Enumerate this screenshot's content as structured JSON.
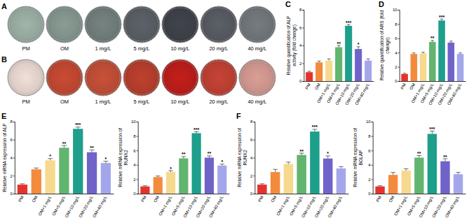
{
  "plate_panels": [
    {
      "panel": "A",
      "labels": [
        "PM",
        "OM",
        "1 mg/L",
        "5 mg/L",
        "10 mg/L",
        "20 mg/L",
        "40 mg/L"
      ]
    },
    {
      "panel": "B",
      "labels": [
        "PM",
        "OM",
        "1 mg/L",
        "5 mg/L",
        "10 mg/L",
        "20 mg/L",
        "40 mg/L"
      ]
    }
  ],
  "chart_data": [
    {
      "type": "bar",
      "panel": "C",
      "y_label": "Relative quantification of ALP activity (fold change)",
      "categories": [
        "PM",
        "OM",
        "OM+1 mg/L",
        "OM+5 mg/L",
        "OM+10 mg/L",
        "OM+20 mg/L",
        "OM+40 mg/L"
      ],
      "values": [
        1,
        2.1,
        2.3,
        3.8,
        6.2,
        3.6,
        2.3
      ],
      "errors": [
        0.1,
        0.15,
        0.2,
        0.2,
        0.15,
        0.25,
        0.2
      ],
      "annotations": [
        null,
        null,
        null,
        "**",
        "***",
        "*",
        null
      ],
      "colors": [
        "#e5322d",
        "#f28b3b",
        "#f6d98e",
        "#62b56f",
        "#1d9f8b",
        "#6f63c9",
        "#a4a6ec"
      ],
      "ylim": [
        0,
        8
      ],
      "yticks": [
        0,
        2,
        4,
        6,
        8
      ],
      "grid": false
    },
    {
      "type": "bar",
      "panel": "D",
      "y_label": "Relative quantification of ARS (fold change)",
      "categories": [
        "PM",
        "OM",
        "OM+1 mg/L",
        "OM+5 mg/L",
        "OM+10 mg/L",
        "OM+20 mg/L",
        "OM+40 mg/L"
      ],
      "values": [
        1,
        3.8,
        3.9,
        5.5,
        8.5,
        5.4,
        3.8
      ],
      "errors": [
        0.1,
        0.15,
        0.15,
        0.2,
        0.2,
        0.2,
        0.15
      ],
      "annotations": [
        null,
        null,
        null,
        "**",
        "***",
        null,
        null
      ],
      "colors": [
        "#e5322d",
        "#f28b3b",
        "#f6d98e",
        "#62b56f",
        "#1d9f8b",
        "#6f63c9",
        "#a4a6ec"
      ],
      "ylim": [
        0,
        10
      ],
      "yticks": [
        0,
        2,
        4,
        6,
        8,
        10
      ],
      "grid": false
    },
    {
      "type": "bar",
      "panel": "E",
      "y_label": "Relative mRNA expression of ALP",
      "categories": [
        "PM",
        "OM",
        "OM+1 mg/L",
        "OM+5 mg/L",
        "OM+10 mg/L",
        "OM+20 mg/L",
        "OM+40 mg/L"
      ],
      "values": [
        1,
        2.7,
        3.7,
        5.1,
        7.2,
        4.6,
        3.4
      ],
      "errors": [
        0.1,
        0.15,
        0.2,
        0.25,
        0.2,
        0.25,
        0.2
      ],
      "annotations": [
        null,
        null,
        "*",
        "**",
        "***",
        "**",
        "*"
      ],
      "colors": [
        "#e5322d",
        "#f28b3b",
        "#f6d98e",
        "#62b56f",
        "#1d9f8b",
        "#6f63c9",
        "#a4a6ec"
      ],
      "ylim": [
        0,
        8
      ],
      "yticks": [
        0,
        2,
        4,
        6,
        8
      ],
      "grid": false
    },
    {
      "type": "bar",
      "y_label": "Relative mRNA expression of RUNX2",
      "categories": [
        "PM",
        "OM",
        "OM+1 mg/L",
        "OM+5 mg/L",
        "OM+10 mg/L",
        "OM+20 mg/L",
        "OM+40 mg/L"
      ],
      "values": [
        1,
        2.3,
        3.0,
        4.9,
        8.4,
        5.0,
        3.9
      ],
      "errors": [
        0.1,
        0.15,
        0.2,
        0.25,
        0.2,
        0.25,
        0.2
      ],
      "annotations": [
        null,
        null,
        "*",
        "**",
        "***",
        "**",
        "*"
      ],
      "colors": [
        "#e5322d",
        "#f28b3b",
        "#f6d98e",
        "#62b56f",
        "#1d9f8b",
        "#6f63c9",
        "#a4a6ec"
      ],
      "ylim": [
        0,
        10
      ],
      "yticks": [
        0,
        2,
        4,
        6,
        8,
        10
      ],
      "grid": false
    },
    {
      "type": "bar",
      "panel": "F",
      "y_label": "Relative mRNA expression of RUNX2",
      "categories": [
        "PM",
        "OM",
        "OM+1 mg/L",
        "OM+5 mg/L",
        "OM+10 mg/L",
        "OM+20 mg/L",
        "OM+40 mg/L"
      ],
      "values": [
        1,
        2.4,
        3.3,
        4.3,
        6.9,
        3.9,
        2.8
      ],
      "errors": [
        0.1,
        0.3,
        0.2,
        0.2,
        0.25,
        0.3,
        0.2
      ],
      "annotations": [
        null,
        null,
        null,
        "**",
        "***",
        "*",
        null
      ],
      "colors": [
        "#e5322d",
        "#f28b3b",
        "#f6d98e",
        "#62b56f",
        "#1d9f8b",
        "#6f63c9",
        "#a4a6ec"
      ],
      "ylim": [
        0,
        8
      ],
      "yticks": [
        0,
        2,
        4,
        6,
        8
      ],
      "grid": false
    },
    {
      "type": "bar",
      "y_label": "Relative mRNA expression of BGLAP",
      "categories": [
        "PM",
        "OM",
        "OM+1 mg/L",
        "OM+5 mg/L",
        "OM+10 mg/L",
        "OM+20 mg/L",
        "OM+40 mg/L"
      ],
      "values": [
        1,
        2.6,
        3.2,
        5.0,
        8.3,
        4.5,
        2.7
      ],
      "errors": [
        0.1,
        0.35,
        0.25,
        0.3,
        0.4,
        0.35,
        0.25
      ],
      "annotations": [
        null,
        null,
        null,
        "**",
        "***",
        "**",
        null
      ],
      "colors": [
        "#e5322d",
        "#f28b3b",
        "#f6d98e",
        "#62b56f",
        "#1d9f8b",
        "#6f63c9",
        "#a4a6ec"
      ],
      "ylim": [
        0,
        10
      ],
      "yticks": [
        0,
        2,
        4,
        6,
        8,
        10
      ],
      "grid": false
    }
  ]
}
